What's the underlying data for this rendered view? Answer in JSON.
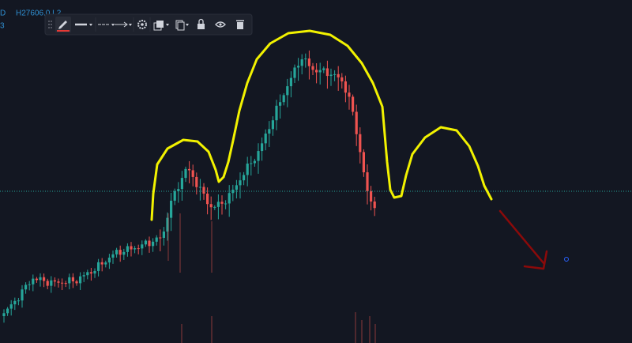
{
  "legend": {
    "interval": "D",
    "ohlc": "H27606.0  L2",
    "second_line": "3"
  }
}
